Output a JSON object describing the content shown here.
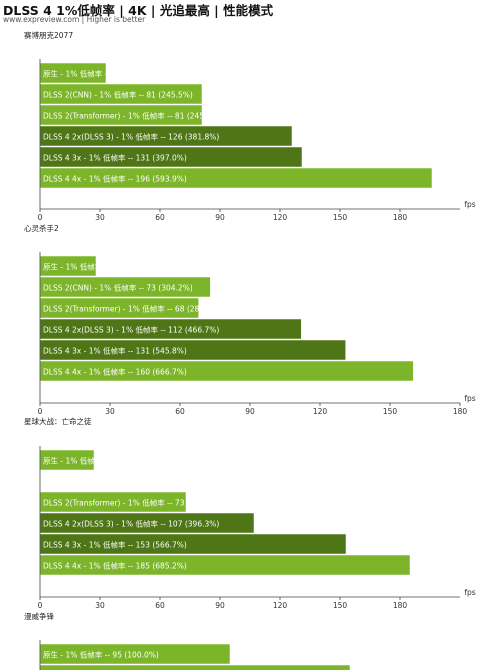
{
  "header": {
    "title": "DLSS 4 1%低帧率 | 4K | 光追最高 | 性能模式",
    "subtitle": "www.expreview.com | Higher is better"
  },
  "colors": {
    "light_green": "#7db52a",
    "dark_green": "#4e7516",
    "base_green": "#8cc63a"
  },
  "chart_data": [
    {
      "type": "bar",
      "orientation": "horizontal",
      "title": "赛博朋克2077",
      "xlabel": "fps",
      "xlim": [
        0,
        210
      ],
      "ticks": [
        0,
        30,
        60,
        90,
        120,
        150,
        180
      ],
      "bars": [
        {
          "label": "原生 - 1% 低帧率  --  33 (100.0%)",
          "value": 33,
          "style": "light"
        },
        {
          "label": "DLSS 2(CNN) - 1% 低帧率  --  81 (245.5%)",
          "value": 81,
          "style": "light"
        },
        {
          "label": "DLSS 2(Transformer) - 1% 低帧率  --  81 (245.5%)",
          "value": 81,
          "style": "light"
        },
        {
          "label": "DLSS 4 2x(DLSS 3) - 1% 低帧率  --  126 (381.8%)",
          "value": 126,
          "style": "dark"
        },
        {
          "label": "DLSS 4 3x - 1% 低帧率  --  131 (397.0%)",
          "value": 131,
          "style": "dark"
        },
        {
          "label": "DLSS 4 4x - 1% 低帧率  --  196 (593.9%)",
          "value": 196,
          "style": "light"
        }
      ]
    },
    {
      "type": "bar",
      "orientation": "horizontal",
      "title": "心灵杀手2",
      "xlabel": "fps",
      "xlim": [
        0,
        180
      ],
      "ticks": [
        0,
        30,
        60,
        90,
        120,
        150,
        180
      ],
      "bars": [
        {
          "label": "原生 - 1% 低帧率  --  24 (100.0%)",
          "value": 24,
          "style": "light"
        },
        {
          "label": "DLSS 2(CNN) - 1% 低帧率  --  73 (304.2%)",
          "value": 73,
          "style": "light"
        },
        {
          "label": "DLSS 2(Transformer) - 1% 低帧率  --  68 (283.3%)",
          "value": 68,
          "style": "light"
        },
        {
          "label": "DLSS 4 2x(DLSS 3) - 1% 低帧率  --  112 (466.7%)",
          "value": 112,
          "style": "dark"
        },
        {
          "label": "DLSS 4 3x - 1% 低帧率  --  131 (545.8%)",
          "value": 131,
          "style": "dark"
        },
        {
          "label": "DLSS 4 4x - 1% 低帧率  --  160 (666.7%)",
          "value": 160,
          "style": "light"
        }
      ]
    },
    {
      "type": "bar",
      "orientation": "horizontal",
      "title": "星球大战：亡命之徒",
      "xlabel": "fps",
      "xlim": [
        0,
        210
      ],
      "ticks": [
        0,
        30,
        60,
        90,
        120,
        150,
        180
      ],
      "bars": [
        {
          "label": "原生 - 1% 低帧率  --  27 (100.0%)",
          "value": 27,
          "style": "light"
        },
        {
          "label": "",
          "value": 0,
          "style": "light"
        },
        {
          "label": "DLSS 2(Transformer) - 1% 低帧率  --  73 (270.4%)",
          "value": 73,
          "style": "light"
        },
        {
          "label": "DLSS 4 2x(DLSS 3) - 1% 低帧率  --  107 (396.3%)",
          "value": 107,
          "style": "dark"
        },
        {
          "label": "DLSS 4 3x - 1% 低帧率  --  153 (566.7%)",
          "value": 153,
          "style": "dark"
        },
        {
          "label": "DLSS 4 4x - 1% 低帧率  --  185 (685.2%)",
          "value": 185,
          "style": "light"
        }
      ]
    },
    {
      "type": "bar",
      "orientation": "horizontal",
      "title": "漫威争锋",
      "xlabel": "",
      "xlim": [
        0,
        210
      ],
      "ticks": [],
      "bars": [
        {
          "label": "原生 - 1% 低帧率  --  95 (100.0%)",
          "value": 95,
          "style": "light"
        },
        {
          "label": "",
          "value": 155,
          "style": "light"
        }
      ]
    }
  ]
}
